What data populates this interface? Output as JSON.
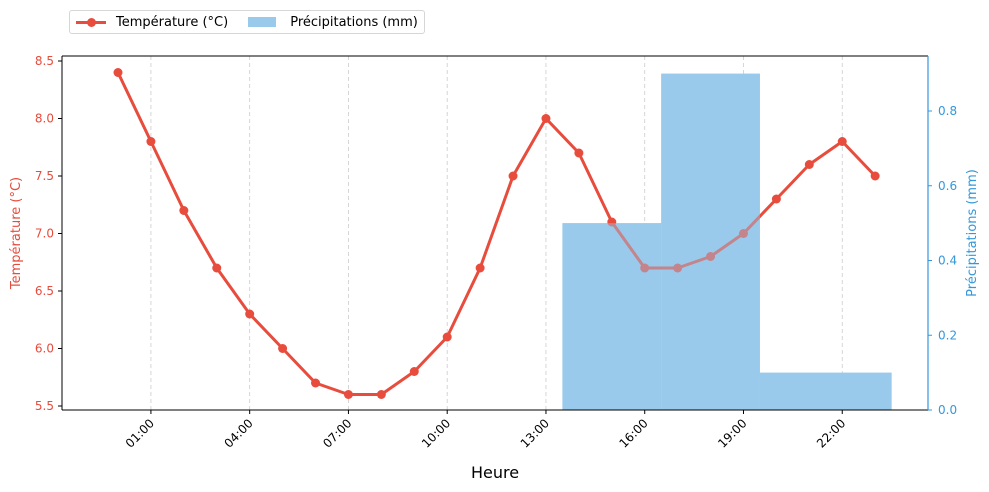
{
  "legend": {
    "temperature_label": "Température (°C)",
    "precip_label": "Précipitations (mm)"
  },
  "colors": {
    "temperature": "#e74c3c",
    "precipitation": "#99c9eb",
    "precip_axis": "#3498db",
    "overlap_line": "#8c6d8a",
    "grid": "#cccccc"
  },
  "chart_data": {
    "type": "line+bar",
    "title": "",
    "xlabel": "Heure",
    "ylabel_left": "Température (°C)",
    "ylabel_right": "Précipitations (mm)",
    "x_ticks": [
      "01:00",
      "04:00",
      "07:00",
      "10:00",
      "13:00",
      "16:00",
      "19:00",
      "22:00"
    ],
    "x_tick_hours": [
      1,
      4,
      7,
      10,
      13,
      16,
      19,
      22
    ],
    "xlim": [
      -1.7,
      24.4
    ],
    "ylim_left": [
      5.45,
      8.55
    ],
    "y_ticks_left": [
      "5.5",
      "6.0",
      "6.5",
      "7.0",
      "7.5",
      "8.0",
      "8.5"
    ],
    "ylim_right": [
      0,
      0.945
    ],
    "y_ticks_right": [
      "0.0",
      "0.2",
      "0.4",
      "0.6",
      "0.8"
    ],
    "grid": "x dashed",
    "legend_position": "above plot, left",
    "series": [
      {
        "name": "Température (°C)",
        "type": "line",
        "axis": "left",
        "x_hours": [
          0,
          1,
          2,
          3,
          4,
          5,
          6,
          7,
          8,
          9,
          10,
          11,
          12,
          13,
          14,
          15,
          16,
          17,
          18,
          19,
          20,
          21,
          22,
          23
        ],
        "values": [
          8.4,
          7.8,
          7.2,
          6.7,
          6.3,
          6.0,
          5.7,
          5.6,
          5.6,
          5.8,
          6.1,
          6.7,
          7.5,
          8.0,
          7.7,
          7.1,
          6.7,
          6.7,
          6.8,
          7.0,
          7.3,
          7.6,
          7.8,
          7.5
        ]
      },
      {
        "name": "Précipitations (mm)",
        "type": "bar",
        "axis": "right",
        "segments": [
          {
            "start_hour": 13.5,
            "end_hour": 16.5,
            "value": 0.5
          },
          {
            "start_hour": 16.5,
            "end_hour": 19.5,
            "value": 0.9
          },
          {
            "start_hour": 19.5,
            "end_hour": 23.5,
            "value": 0.1
          }
        ]
      }
    ]
  }
}
